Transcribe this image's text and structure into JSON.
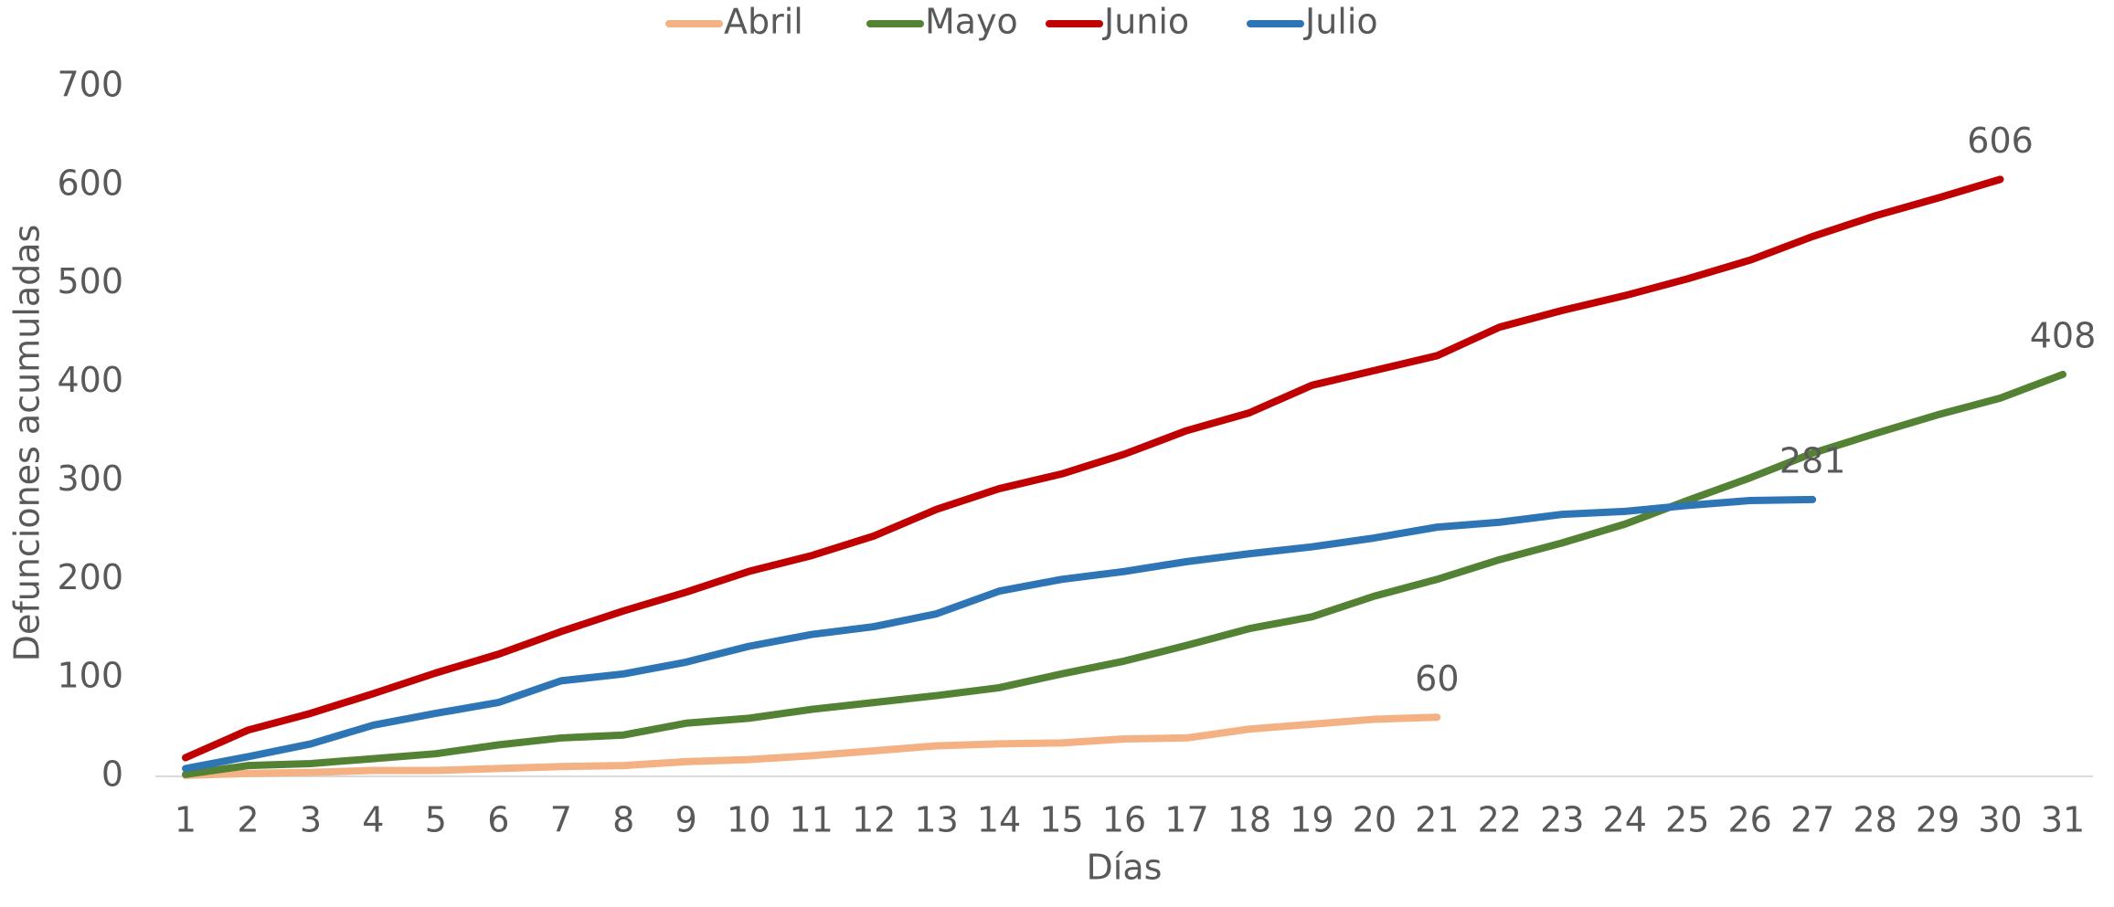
{
  "chart_data": {
    "type": "line",
    "x_label": "Días",
    "y_label": "Defunciones acumuladas",
    "categories": [
      1,
      2,
      3,
      4,
      5,
      6,
      7,
      8,
      9,
      10,
      11,
      12,
      13,
      14,
      15,
      16,
      17,
      18,
      19,
      20,
      21,
      22,
      23,
      24,
      25,
      26,
      27,
      28,
      29,
      30,
      31
    ],
    "series": [
      {
        "name": "Abril",
        "color": "#f4b183",
        "values": [
          1,
          3,
          4,
          6,
          6,
          8,
          10,
          11,
          15,
          17,
          21,
          26,
          31,
          33,
          34,
          38,
          39,
          48,
          53,
          58,
          60,
          null,
          null,
          null,
          null,
          null,
          null,
          null,
          null,
          null,
          null
        ]
      },
      {
        "name": "Mayo",
        "color": "#548235",
        "values": [
          2,
          11,
          13,
          18,
          23,
          32,
          39,
          42,
          54,
          59,
          68,
          75,
          82,
          90,
          104,
          117,
          133,
          150,
          162,
          183,
          200,
          220,
          237,
          256,
          280,
          303,
          328,
          348,
          367,
          384,
          408
        ]
      },
      {
        "name": "Junio",
        "color": "#c00000",
        "values": [
          19,
          47,
          64,
          84,
          105,
          124,
          147,
          168,
          187,
          208,
          224,
          244,
          271,
          292,
          307,
          327,
          351,
          369,
          397,
          412,
          427,
          456,
          473,
          488,
          505,
          524,
          548,
          569,
          587,
          606,
          null
        ]
      },
      {
        "name": "Julio",
        "color": "#2e75b6",
        "values": [
          8,
          20,
          33,
          52,
          64,
          75,
          97,
          104,
          116,
          132,
          144,
          152,
          165,
          188,
          200,
          208,
          218,
          226,
          233,
          242,
          253,
          258,
          266,
          269,
          275,
          280,
          281,
          null,
          null,
          null,
          null
        ]
      }
    ],
    "data_labels": "last",
    "ylim": [
      0,
      700
    ],
    "yticks": [
      0,
      100,
      200,
      300,
      400,
      500,
      600,
      700
    ],
    "grid": false,
    "legend": "top"
  }
}
